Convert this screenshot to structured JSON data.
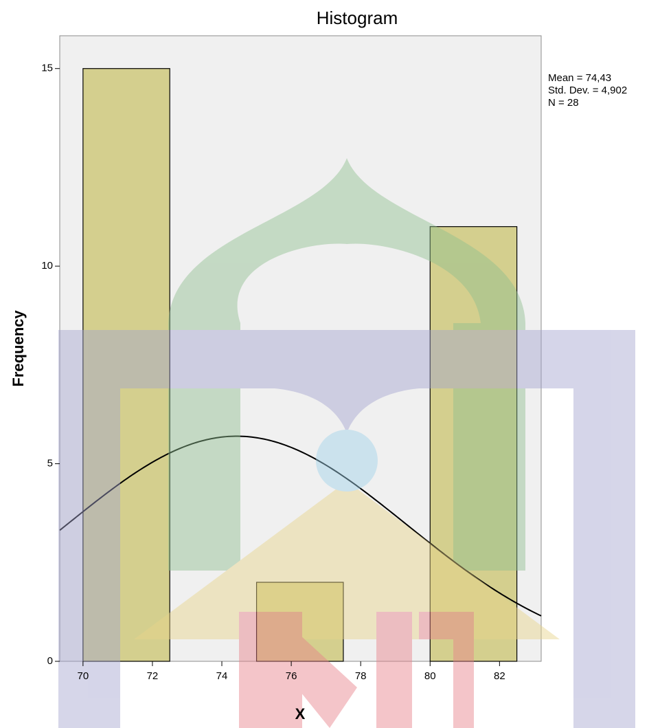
{
  "chart_data": {
    "type": "histogram",
    "title": "Histogram",
    "x_label": "X",
    "y_label": "Frequency",
    "bins": [
      70,
      72.5,
      75,
      77.5,
      80,
      82.5
    ],
    "counts": [
      15,
      0,
      2,
      0,
      11
    ],
    "color": "#d4cf8e",
    "xlim": [
      69.33,
      83.2
    ],
    "xticks": [
      70,
      72,
      74,
      76,
      78,
      80,
      82
    ],
    "ylim": [
      0,
      15.83
    ],
    "yticks": [
      0,
      5,
      10,
      15
    ],
    "stats": [
      {
        "value": 74.43,
        "label": "Mean = 74,43"
      },
      {
        "value": 4.902,
        "label": "Std. Dev. = 4,902"
      },
      {
        "value": 28,
        "label": "N = 28"
      }
    ],
    "normal_curve": true
  }
}
